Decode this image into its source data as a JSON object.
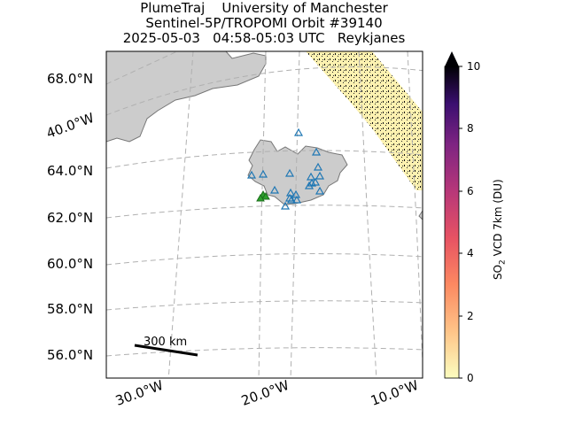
{
  "title": {
    "line1": "PlumeTraj    University of Manchester",
    "line2": "Sentinel-5P/TROPOMI Orbit #39140",
    "line3": "2025-05-03   04:58-05:03 UTC   Reykjanes"
  },
  "map": {
    "lat_labels": [
      "68.0°N",
      "64.0°N",
      "62.0°N",
      "60.0°N",
      "58.0°N",
      "56.0°N"
    ],
    "lon_labels": [
      "30.0°W",
      "20.0°W",
      "10.0°W"
    ],
    "side_lon_label": "40.0°W",
    "scale_bar_label": "300 km",
    "volcano_markers": 19,
    "vent_markers": 3,
    "colors": {
      "land": "#cccccc",
      "coast": "#777777",
      "grid": "#b0b0b0",
      "volcano_marker": "#1f77b4",
      "vent_marker": "#2ca02c"
    }
  },
  "colorbar": {
    "ticks": [
      "10",
      "8",
      "6",
      "4",
      "2",
      "0"
    ],
    "label_main": "SO",
    "label_sub": "2",
    "label_rest": " VCD 7km (DU)",
    "min": 0,
    "max": 10,
    "extend": "max",
    "colormap": "magma_r"
  }
}
